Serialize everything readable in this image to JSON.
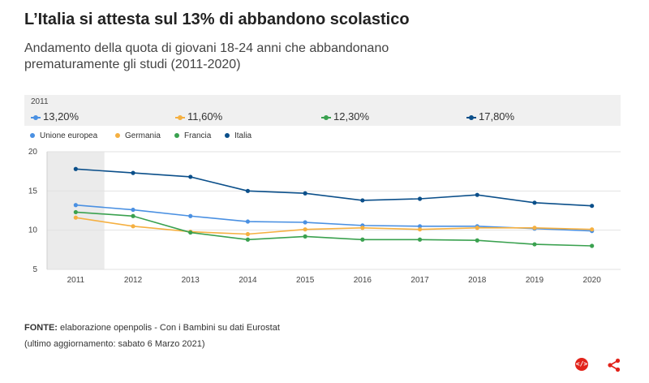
{
  "header": {
    "title": "L’Italia si attesta sul 13% di abbandono scolastico",
    "subtitle": "Andamento della quota di giovani 18-24 anni che abbandonano prematuramente gli studi (2011-2020)"
  },
  "tooltip": {
    "year": "2011",
    "items": [
      {
        "value": "13,20%",
        "color": "#4a90e2"
      },
      {
        "value": "11,60%",
        "color": "#f5b041"
      },
      {
        "value": "12,30%",
        "color": "#3aa14f"
      },
      {
        "value": "17,80%",
        "color": "#0b4f8a"
      }
    ]
  },
  "footer": {
    "source_label": "FONTE:",
    "source_text": "elaborazione openpolis - Con i Bambini su dati Eurostat",
    "updated": "(ultimo aggiornamento: sabato 6 Marzo 2021)"
  },
  "icons": {
    "embed": "embed-icon",
    "share": "share-icon"
  },
  "chart_data": {
    "type": "line",
    "categories": [
      "2011",
      "2012",
      "2013",
      "2014",
      "2015",
      "2016",
      "2017",
      "2018",
      "2019",
      "2020"
    ],
    "ylim": [
      5,
      20
    ],
    "yticks": [
      "5",
      "10",
      "15",
      "20"
    ],
    "grid": true,
    "legend_position": "top-left",
    "highlighted_category": "2011",
    "series": [
      {
        "name": "Unione europea",
        "color": "#4a90e2",
        "values": [
          13.2,
          12.6,
          11.8,
          11.1,
          11.0,
          10.6,
          10.5,
          10.5,
          10.2,
          9.9
        ]
      },
      {
        "name": "Germania",
        "color": "#f5b041",
        "values": [
          11.6,
          10.5,
          9.8,
          9.5,
          10.1,
          10.3,
          10.1,
          10.3,
          10.3,
          10.1
        ]
      },
      {
        "name": "Francia",
        "color": "#3aa14f",
        "values": [
          12.3,
          11.8,
          9.7,
          8.8,
          9.2,
          8.8,
          8.8,
          8.7,
          8.2,
          8.0
        ]
      },
      {
        "name": "Italia",
        "color": "#0b4f8a",
        "values": [
          17.8,
          17.3,
          16.8,
          15.0,
          14.7,
          13.8,
          14.0,
          14.5,
          13.5,
          13.1
        ]
      }
    ]
  }
}
